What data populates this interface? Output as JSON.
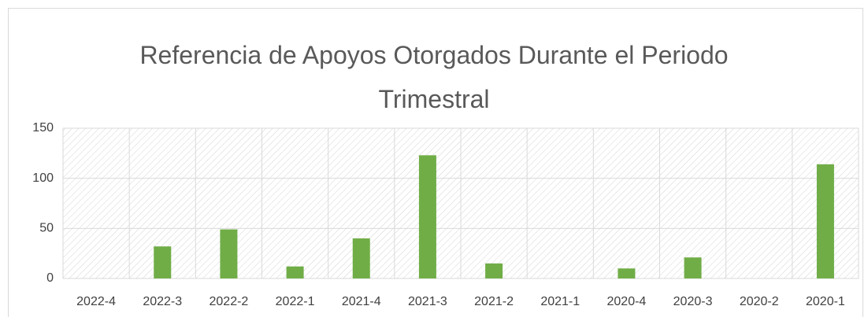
{
  "chart_data": {
    "type": "bar",
    "title": "Referencia de Apoyos Otorgados Durante el Periodo Trimestral",
    "categories": [
      "2022-4",
      "2022-3",
      "2022-2",
      "2022-1",
      "2021-4",
      "2021-3",
      "2021-2",
      "2021-1",
      "2020-4",
      "2020-3",
      "2020-2",
      "2020-1"
    ],
    "values": [
      0,
      32,
      49,
      12,
      40,
      123,
      15,
      0,
      10,
      21,
      0,
      114
    ],
    "color": "#70ad47",
    "ylim": [
      0,
      150
    ],
    "yticks": [
      0,
      50,
      100,
      150
    ],
    "grid": true
  }
}
